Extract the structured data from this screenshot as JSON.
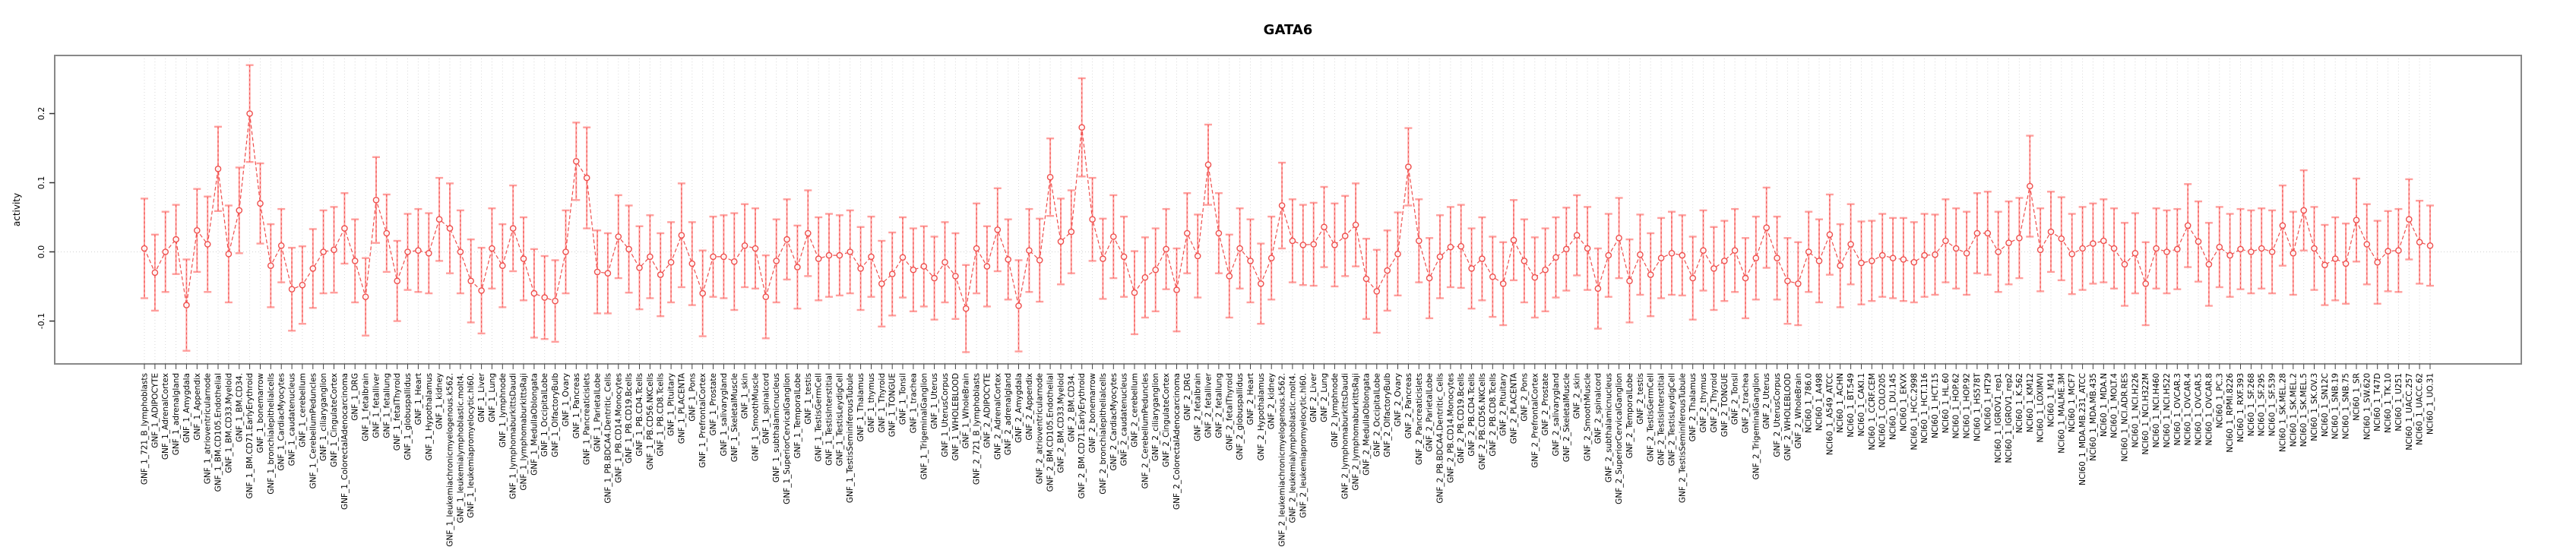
{
  "chart_data": {
    "type": "line",
    "subtype": "points-with-error-bars",
    "title": "GATA6",
    "xlabel": "",
    "ylabel": "activity",
    "ylim": [
      -0.162,
      0.284
    ],
    "yticks": [
      -0.1,
      0.0,
      0.1,
      0.2
    ],
    "ytick_labels": [
      "-0.1",
      "0.0",
      "0.1",
      "0.2"
    ],
    "grid": "vertical dotted gridline per category, dotted horizontal line at 0",
    "legend": "none",
    "colors": {
      "point": "#ef4f4d",
      "line": "#ef4f4d",
      "error_bar_cap": "#ff9f9d",
      "error_bar_stem": "#ff9f9d",
      "error_bar_dash": "#ef4f4d",
      "gridline": "#d9d9d9",
      "box_border": "#888888"
    },
    "categories": [
      "GNF_1_721_B_lymphoblasts",
      "GNF_1_ADIPOCYTE",
      "GNF_1_AdrenalCortex",
      "GNF_1_adrenalgland",
      "GNF_1_Amygdala",
      "GNF_1_Appendix",
      "GNF_1_atrioventricularnode",
      "GNF_1_BM.CD105.Endothelial",
      "GNF_1_BM.CD33.Myeloid",
      "GNF_1_BM.CD34.",
      "GNF_1_BM.CD71.EarlyErythroid",
      "GNF_1_bonemarrow",
      "GNF_1_bronchialepithelialcells",
      "GNF_1_CardiacMyocytes",
      "GNF_1_caudatenucleus",
      "GNF_1_cerebellum",
      "GNF_1_CerebellumPeduncles",
      "GNF_1_ciliaryganglion",
      "GNF_1_CingulateCortex",
      "GNF_1_ColorectalAdenocarcinoma",
      "GNF_1_DRG",
      "GNF_1_fetalbrain",
      "GNF_1_fetalliver",
      "GNF_1_fetallung",
      "GNF_1_fetalThyroid",
      "GNF_1_globuspallidus",
      "GNF_1_Heart",
      "GNF_1_Hypothalamus",
      "GNF_1_kidney",
      "GNF_1_leukemiachronicmyelogenous.k562.",
      "GNF_1_leukemialymphoblastic.molt4.",
      "GNF_1_leukemiapromyelocytic.hl60.",
      "GNF_1_Liver",
      "GNF_1_Lung",
      "GNF_1_lymphnode",
      "GNF_1_lymphomaburkittsDaudi",
      "GNF_1_lymphomaburkittsRaji",
      "GNF_1_MedullaOblongata",
      "GNF_1_OccipitalLobe",
      "GNF_1_OlfactoryBulb",
      "GNF_1_Ovary",
      "GNF_1_Pancreas",
      "GNF_1_Pancreaticislets",
      "GNF_1_ParietalLobe",
      "GNF_1_PB.BDCA4.Dentritic_Cells",
      "GNF_1_PB.CD14.Monocytes",
      "GNF_1_PB.CD19.Bcells",
      "GNF_1_PB.CD4.Tcells",
      "GNF_1_PB.CD56.NKCells",
      "GNF_1_PB.CD8.Tcells",
      "GNF_1_Pituitary",
      "GNF_1_PLACENTA",
      "GNF_1_Pons",
      "GNF_1_PrefrontalCortex",
      "GNF_1_Prostate",
      "GNF_1_salivarygland",
      "GNF_1_SkeletalMuscle",
      "GNF_1_skin",
      "GNF_1_SmoothMuscle",
      "GNF_1_spinalcord",
      "GNF_1_subthalamicnucleus",
      "GNF_1_SuperiorCervicalGanglion",
      "GNF_1_TemporalLobe",
      "GNF_1_testis",
      "GNF_1_TestisGermCell",
      "GNF_1_TestisInterstitial",
      "GNF_1_TestisLeydigCell",
      "GNF_1_TestisSeminiferousTubule",
      "GNF_1_Thalamus",
      "GNF_1_thymus",
      "GNF_1_Thyroid",
      "GNF_1_TONGUE",
      "GNF_1_Tonsil",
      "GNF_1_trachea",
      "GNF_1_TrigeminalGanglion",
      "GNF_1_Uterus",
      "GNF_1_UterusCorpus",
      "GNF_1_WHOLEBLOOD",
      "GNF_1_WholeBrain",
      "GNF_2_721_B_lymphoblasts",
      "GNF_2_ADIPOCYTE",
      "GNF_2_AdrenalCortex",
      "GNF_2_adrenalgland",
      "GNF_2_Amygdala",
      "GNF_2_Appendix",
      "GNF_2_atrioventricularnode",
      "GNF_2_BM.CD105.Endothelial",
      "GNF_2_BM.CD33.Myeloid",
      "GNF_2_BM.CD34.",
      "GNF_2_BM.CD71.EarlyErythroid",
      "GNF_2_bonemarrow",
      "GNF_2_bronchialepithelialcells",
      "GNF_2_CardiacMyocytes",
      "GNF_2_caudatenucleus",
      "GNF_2_cerebellum",
      "GNF_2_CerebellumPeduncles",
      "GNF_2_ciliaryganglion",
      "GNF_2_CingulateCortex",
      "GNF_2_ColorectalAdenocarcinoma",
      "GNF_2_DRG",
      "GNF_2_fetalbrain",
      "GNF_2_fetalliver",
      "GNF_2_fetallung",
      "GNF_2_fetalThyroid",
      "GNF_2_globuspallidus",
      "GNF_2_Heart",
      "GNF_2_Hypothalamus",
      "GNF_2_kidney",
      "GNF_2_leukemiachronicmyelogenous.k562.",
      "GNF_2_leukemialymphoblastic.molt4.",
      "GNF_2_leukemiapromyelocytic.hl60.",
      "GNF_2_Liver",
      "GNF_2_Lung",
      "GNF_2_lymphnode",
      "GNF_2_lymphomaburkittsDaudi",
      "GNF_2_lymphomaburkittsRaji",
      "GNF_2_MedullaOblongata",
      "GNF_2_OccipitalLobe",
      "GNF_2_OlfactoryBulb",
      "GNF_2_Ovary",
      "GNF_2_Pancreas",
      "GNF_2_Pancreaticislets",
      "GNF_2_ParietalLobe",
      "GNF_2_PB.BDCA4.Dentritic_Cells",
      "GNF_2_PB.CD14.Monocytes",
      "GNF_2_PB.CD19.Bcells",
      "GNF_2_PB.CD4.Tcells",
      "GNF_2_PB.CD56.NKCells",
      "GNF_2_PB.CD8.Tcells",
      "GNF_2_Pituitary",
      "GNF_2_PLACENTA",
      "GNF_2_Pons",
      "GNF_2_PrefrontalCortex",
      "GNF_2_Prostate",
      "GNF_2_salivarygland",
      "GNF_2_SkeletalMuscle",
      "GNF_2_skin",
      "GNF_2_SmoothMuscle",
      "GNF_2_spinalcord",
      "GNF_2_subthalamicnucleus",
      "GNF_2_SuperiorCervicalGanglion",
      "GNF_2_TemporalLobe",
      "GNF_2_testis",
      "GNF_2_TestisGermCell",
      "GNF_2_TestisInterstitial",
      "GNF_2_TestisLeydigCell",
      "GNF_2_TestisSeminiferousTubule",
      "GNF_2_Thalamus",
      "GNF_2_thymus",
      "GNF_2_Thyroid",
      "GNF_2_TONGUE",
      "GNF_2_Tonsil",
      "GNF_2_trachea",
      "GNF_2_TrigeminalGanglion",
      "GNF_2_Uterus",
      "GNF_2_UterusCorpus",
      "GNF_2_WHOLEBLOOD",
      "GNF_2_WholeBrain",
      "NCI60_1_786.0",
      "NCI60_1_A498",
      "NCI60_1_A549_ATCC",
      "NCI60_1_ACHN",
      "NCI60_1_BT.549",
      "NCI60_1_CAKI.1",
      "NCI60_1_CCRF.CEM",
      "NCI60_1_COLO205",
      "NCI60_1_DU.145",
      "NCI60_1_EKVX",
      "NCI60_1_HCC.2998",
      "NCI60_1_HCT.116",
      "NCI60_1_HCT.15",
      "NCI60_1_HL.60",
      "NCI60_1_HOP.62",
      "NCI60_1_HOP.92",
      "NCI60_1_HS578T",
      "NCI60_1_HT29",
      "NCI60_1_IGROV1_rep1",
      "NCI60_1_IGROV1_rep2",
      "NCI60_1_K.562",
      "NCI60_1_KM12",
      "NCI60_1_LOXIMVI",
      "NCI60_1_M14",
      "NCI60_1_MALME.3M",
      "NCI60_1_MCF7",
      "NCI60_1_MDA.MB.231_ATCC",
      "NCI60_1_MDA.MB.435",
      "NCI60_1_MDA.N",
      "NCI60_1_MOLT.4",
      "NCI60_1_NCI.ADR.RES",
      "NCI60_1_NCI.H226",
      "NCI60_1_NCI.H322M",
      "NCI60_1_NCI.H460",
      "NCI60_1_NCI.H522",
      "NCI60_1_OVCAR.3",
      "NCI60_1_OVCAR.4",
      "NCI60_1_OVCAR.5",
      "NCI60_1_OVCAR.8",
      "NCI60_1_PC.3",
      "NCI60_1_RPMI.8226",
      "NCI60_1_RXF.393",
      "NCI60_1_SF.268",
      "NCI60_1_SF.295",
      "NCI60_1_SF.539",
      "NCI60_1_SK.MEL.28",
      "NCI60_1_SK.MEL.2",
      "NCI60_1_SK.MEL.5",
      "NCI60_1_SK.OV.3",
      "NCI60_1_SN12C",
      "NCI60_1_SNB.19",
      "NCI60_1_SNB.75",
      "NCI60_1_SR",
      "NCI60_1_SW.620",
      "NCI60_1_T47D",
      "NCI60_1_TK.10",
      "NCI60_1_U251",
      "NCI60_1_UACC.257",
      "NCI60_1_UACC.62",
      "NCI60_1_UO.31"
    ],
    "values": [
      0.005,
      -0.03,
      0.0,
      0.018,
      -0.077,
      0.031,
      0.011,
      0.12,
      -0.003,
      0.06,
      0.2,
      0.07,
      -0.02,
      0.009,
      -0.054,
      -0.048,
      -0.024,
      0.0,
      0.003,
      0.034,
      -0.013,
      -0.065,
      0.075,
      0.027,
      -0.042,
      0.0,
      0.002,
      -0.002,
      0.047,
      0.034,
      0.0,
      -0.042,
      -0.056,
      0.005,
      -0.02,
      0.034,
      -0.01,
      -0.06,
      -0.066,
      -0.071,
      0.0,
      0.131,
      0.107,
      -0.029,
      -0.031,
      0.022,
      0.004,
      -0.023,
      -0.007,
      -0.033,
      -0.015,
      0.024,
      -0.017,
      -0.06,
      -0.007,
      -0.007,
      -0.014,
      0.009,
      0.005,
      -0.065,
      -0.013,
      0.018,
      -0.022,
      0.027,
      -0.01,
      -0.005,
      -0.005,
      0.0,
      -0.024,
      -0.007,
      -0.046,
      -0.032,
      -0.008,
      -0.026,
      -0.021,
      -0.038,
      -0.015,
      -0.035,
      -0.082,
      0.005,
      -0.021,
      0.032,
      -0.011,
      -0.078,
      0.002,
      -0.012,
      0.108,
      0.015,
      0.029,
      0.18,
      0.047,
      -0.01,
      0.022,
      -0.007,
      -0.059,
      -0.037,
      -0.026,
      0.004,
      -0.055,
      0.027,
      -0.006,
      0.126,
      0.027,
      -0.035,
      0.005,
      -0.013,
      -0.046,
      -0.009,
      0.067,
      0.016,
      0.01,
      0.011,
      0.036,
      0.01,
      0.023,
      0.039,
      -0.039,
      -0.057,
      -0.027,
      -0.003,
      0.123,
      0.016,
      -0.038,
      -0.007,
      0.007,
      0.008,
      -0.024,
      -0.01,
      -0.036,
      -0.046,
      0.017,
      -0.013,
      -0.037,
      -0.026,
      -0.008,
      0.004,
      0.024,
      0.005,
      -0.053,
      -0.005,
      0.02,
      -0.042,
      -0.004,
      -0.033,
      -0.009,
      -0.002,
      -0.005,
      -0.038,
      0.002,
      -0.024,
      -0.013,
      0.002,
      -0.038,
      -0.009,
      0.035,
      -0.009,
      -0.042,
      -0.046,
      0.0,
      -0.013,
      0.025,
      -0.02,
      0.011,
      -0.016,
      -0.013,
      -0.005,
      -0.009,
      -0.011,
      -0.015,
      -0.005,
      -0.004,
      0.016,
      0.005,
      -0.002,
      0.027,
      0.027,
      0.0,
      0.013,
      0.02,
      0.095,
      0.003,
      0.029,
      0.019,
      -0.003,
      0.005,
      0.012,
      0.016,
      0.005,
      -0.018,
      -0.002,
      -0.046,
      0.005,
      0.0,
      0.004,
      0.038,
      0.015,
      -0.018,
      0.007,
      -0.005,
      0.004,
      0.0,
      0.005,
      0.0,
      0.038,
      -0.002,
      0.06,
      0.005,
      -0.019,
      -0.01,
      -0.017,
      0.046,
      0.011,
      -0.015,
      0.001,
      0.002,
      0.047,
      0.014,
      0.009
    ],
    "errors": [
      0.072,
      0.055,
      0.058,
      0.05,
      0.066,
      0.06,
      0.069,
      0.061,
      0.07,
      0.062,
      0.07,
      0.058,
      0.06,
      0.053,
      0.06,
      0.056,
      0.057,
      0.06,
      0.062,
      0.051,
      0.06,
      0.056,
      0.062,
      0.056,
      0.058,
      0.055,
      0.06,
      0.058,
      0.06,
      0.065,
      0.06,
      0.06,
      0.062,
      0.058,
      0.06,
      0.062,
      0.06,
      0.064,
      0.06,
      0.059,
      0.06,
      0.056,
      0.073,
      0.06,
      0.058,
      0.06,
      0.063,
      0.06,
      0.06,
      0.06,
      0.058,
      0.075,
      0.06,
      0.062,
      0.058,
      0.06,
      0.07,
      0.06,
      0.058,
      0.06,
      0.06,
      0.058,
      0.06,
      0.062,
      0.06,
      0.06,
      0.058,
      0.06,
      0.06,
      0.058,
      0.062,
      0.06,
      0.058,
      0.06,
      0.058,
      0.06,
      0.058,
      0.062,
      0.063,
      0.065,
      0.058,
      0.06,
      0.058,
      0.066,
      0.06,
      0.06,
      0.056,
      0.062,
      0.06,
      0.071,
      0.06,
      0.058,
      0.06,
      0.058,
      0.06,
      0.058,
      0.06,
      0.058,
      0.06,
      0.058,
      0.06,
      0.058,
      0.058,
      0.06,
      0.058,
      0.06,
      0.058,
      0.06,
      0.062,
      0.06,
      0.058,
      0.06,
      0.058,
      0.06,
      0.058,
      0.06,
      0.058,
      0.06,
      0.058,
      0.06,
      0.056,
      0.06,
      0.058,
      0.06,
      0.058,
      0.06,
      0.058,
      0.06,
      0.058,
      0.06,
      0.058,
      0.06,
      0.058,
      0.06,
      0.058,
      0.06,
      0.058,
      0.06,
      0.058,
      0.06,
      0.058,
      0.06,
      0.058,
      0.06,
      0.058,
      0.06,
      0.058,
      0.06,
      0.058,
      0.06,
      0.058,
      0.06,
      0.058,
      0.06,
      0.058,
      0.06,
      0.062,
      0.06,
      0.058,
      0.06,
      0.058,
      0.06,
      0.058,
      0.06,
      0.058,
      0.06,
      0.058,
      0.06,
      0.058,
      0.06,
      0.058,
      0.06,
      0.058,
      0.06,
      0.058,
      0.06,
      0.058,
      0.06,
      0.058,
      0.073,
      0.06,
      0.058,
      0.06,
      0.058,
      0.06,
      0.058,
      0.06,
      0.058,
      0.06,
      0.058,
      0.06,
      0.058,
      0.06,
      0.058,
      0.06,
      0.058,
      0.06,
      0.058,
      0.06,
      0.058,
      0.06,
      0.058,
      0.06,
      0.058,
      0.06,
      0.058,
      0.06,
      0.058,
      0.06,
      0.058,
      0.06,
      0.058,
      0.06,
      0.058,
      0.06,
      0.058,
      0.06,
      0.058
    ]
  }
}
